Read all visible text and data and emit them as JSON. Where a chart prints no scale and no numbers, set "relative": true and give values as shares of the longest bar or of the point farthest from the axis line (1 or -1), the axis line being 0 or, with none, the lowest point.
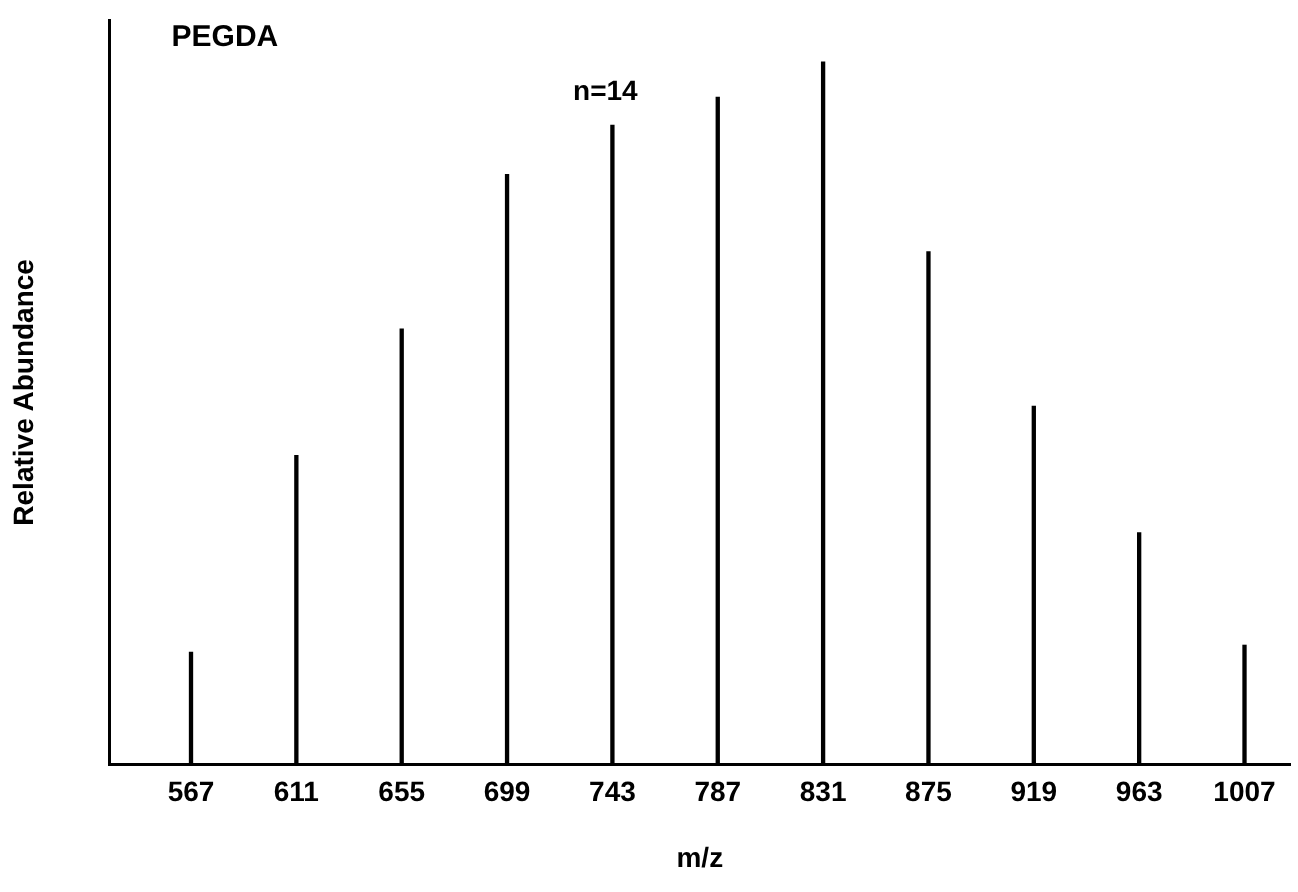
{
  "chart_data": {
    "type": "bar",
    "title": "PEGDA",
    "xlabel": "m/z",
    "ylabel": "Relative Abundance",
    "relative": true,
    "x": [
      567,
      611,
      655,
      699,
      743,
      787,
      831,
      875,
      919,
      963,
      1007
    ],
    "values": [
      0.16,
      0.44,
      0.62,
      0.84,
      0.91,
      0.95,
      1,
      0.73,
      0.51,
      0.33,
      0.17
    ],
    "color": "#000000",
    "xlim": [
      533,
      1026
    ],
    "xticks": [
      567,
      611,
      655,
      699,
      743,
      787,
      831,
      875,
      919,
      963,
      1007
    ],
    "annotations": [
      "n=14"
    ],
    "grid": false,
    "legend": false
  }
}
